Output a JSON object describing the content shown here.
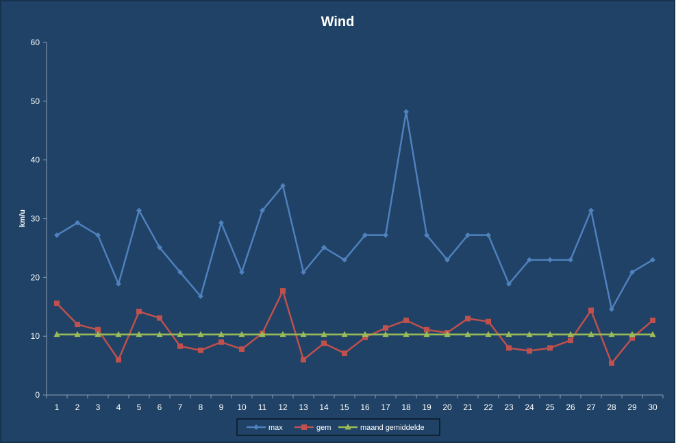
{
  "chart_data": {
    "type": "line",
    "title": "Wind",
    "xlabel": "",
    "ylabel": "km/u",
    "ylim": [
      0,
      60
    ],
    "yticks": [
      0,
      10,
      20,
      30,
      40,
      50,
      60
    ],
    "categories": [
      "1",
      "2",
      "3",
      "4",
      "5",
      "6",
      "7",
      "8",
      "9",
      "10",
      "11",
      "12",
      "13",
      "14",
      "15",
      "16",
      "17",
      "18",
      "19",
      "20",
      "21",
      "22",
      "23",
      "24",
      "25",
      "26",
      "27",
      "28",
      "29",
      "30"
    ],
    "grid": false,
    "legend_position": "bottom",
    "background_color": "#1f4266",
    "series": [
      {
        "name": "max",
        "color": "#4f81bd",
        "marker": "diamond",
        "values": [
          27.2,
          29.3,
          27.2,
          18.9,
          31.4,
          25.1,
          20.9,
          16.8,
          29.3,
          20.9,
          31.4,
          35.6,
          20.9,
          25.1,
          23.0,
          27.2,
          27.2,
          48.2,
          27.2,
          23.0,
          27.2,
          27.2,
          18.9,
          23.0,
          23.0,
          23.0,
          31.4,
          14.6,
          20.9,
          23.0
        ]
      },
      {
        "name": "gem",
        "color": "#c0504d",
        "marker": "square",
        "values": [
          15.6,
          12.0,
          11.1,
          6.0,
          14.2,
          13.1,
          8.3,
          7.6,
          9.0,
          7.8,
          10.5,
          17.7,
          6.0,
          8.8,
          7.1,
          9.8,
          11.4,
          12.7,
          11.1,
          10.6,
          13.0,
          12.5,
          8.0,
          7.5,
          8.0,
          9.3,
          14.4,
          5.4,
          9.7,
          12.7
        ]
      },
      {
        "name": "maand gemiddelde",
        "color": "#9bbb59",
        "marker": "triangle",
        "values": [
          10.3,
          10.3,
          10.3,
          10.3,
          10.3,
          10.3,
          10.3,
          10.3,
          10.3,
          10.3,
          10.3,
          10.3,
          10.3,
          10.3,
          10.3,
          10.3,
          10.3,
          10.3,
          10.3,
          10.3,
          10.3,
          10.3,
          10.3,
          10.3,
          10.3,
          10.3,
          10.3,
          10.3,
          10.3,
          10.3
        ]
      }
    ]
  }
}
